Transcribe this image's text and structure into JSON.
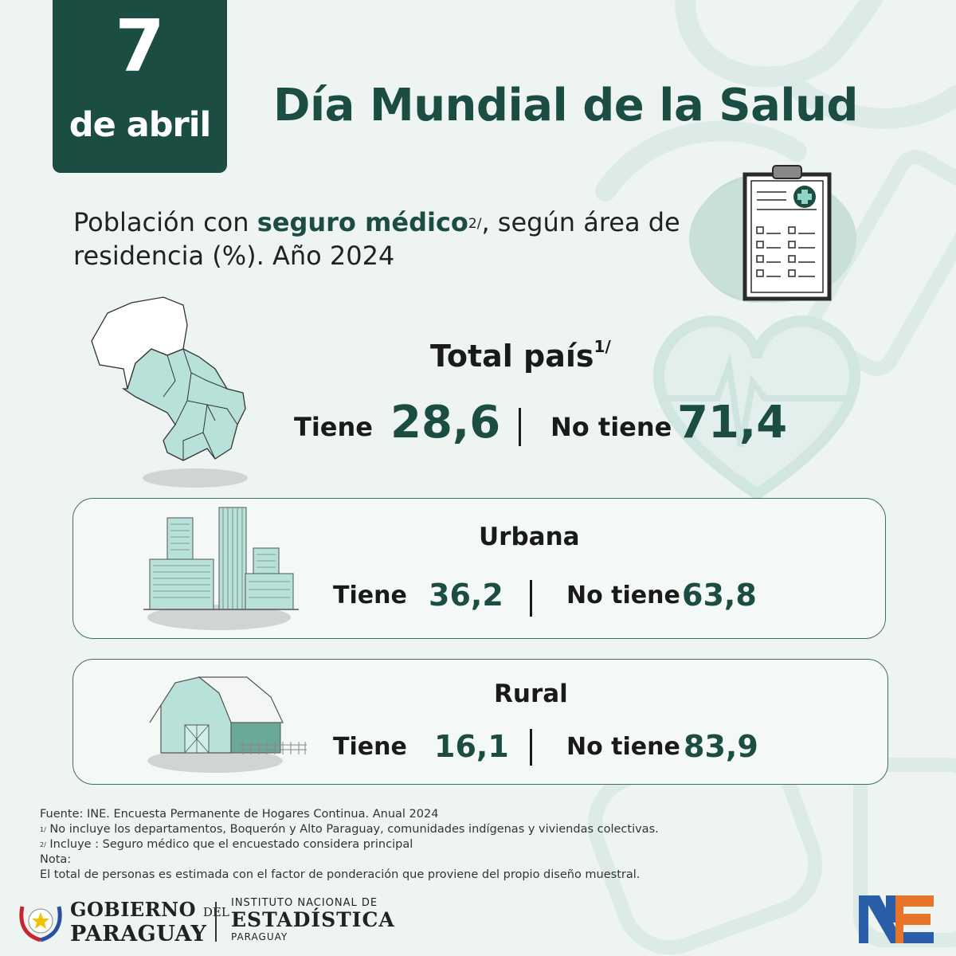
{
  "date": {
    "day": "7",
    "month": "de abril"
  },
  "title": "Día Mundial  de la Salud",
  "subtitle": {
    "part1": "Población con ",
    "highlight": "seguro médico",
    "note_mark": "2/",
    "part2": ", según área de residencia (%).  Año 2024"
  },
  "total": {
    "title": "Total país",
    "note_mark": "1/",
    "tiene_label": "Tiene",
    "tiene_value": "28,6",
    "no_tiene_label": "No tiene",
    "no_tiene_value": "71,4"
  },
  "urbana": {
    "title": "Urbana",
    "tiene_label": "Tiene",
    "tiene_value": "36,2",
    "no_tiene_label": "No tiene",
    "no_tiene_value": "63,8"
  },
  "rural": {
    "title": "Rural",
    "tiene_label": "Tiene",
    "tiene_value": "16,1",
    "no_tiene_label": "No tiene",
    "no_tiene_value": "83,9"
  },
  "notes": {
    "source": "Fuente: INE. Encuesta Permanente de Hogares Continua. Anual 2024",
    "note1_mark": "1/",
    "note1": " No incluye los departamentos, Boquerón y Alto Paraguay, comunidades indígenas y viviendas colectivas.",
    "note2_mark": "2/",
    "note2": " Incluye : Seguro médico que el encuestado considera principal",
    "nota_label": "Nota:",
    "nota_text": "El total de personas es estimada con el factor de ponderación que proviene del propio diseño muestral."
  },
  "logos": {
    "gobierno_line1": "GOBIERNO",
    "gobierno_del": "DEL",
    "gobierno_line2": "PARAGUAY",
    "ine_line1": "INSTITUTO NACIONAL DE",
    "ine_line2": "ESTADÍSTICA",
    "ine_line3": "PARAGUAY"
  },
  "icons": [
    "stethoscope-icon",
    "clipboard-icon",
    "heart-pulse-icon",
    "syringe-icon",
    "paraguay-map-icon",
    "city-buildings-icon",
    "barn-icon",
    "paraguay-seal-icon",
    "ine-logo-icon"
  ],
  "colors": {
    "dark_green": "#1c4d43",
    "mint": "#b7e1d9",
    "background": "#eef4f2",
    "ine_blue": "#2a5ea8",
    "ine_orange": "#e8742a"
  }
}
